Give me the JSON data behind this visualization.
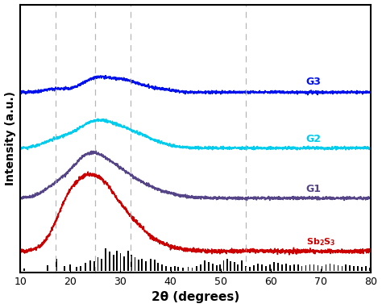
{
  "x_min": 10,
  "x_max": 80,
  "xlabel": "2θ (degrees)",
  "ylabel": "Intensity (a.u.)",
  "dashed_lines": [
    17,
    25,
    32,
    55
  ],
  "curve_labels": [
    "G3",
    "G2",
    "G1",
    "Sb₂S₃"
  ],
  "curve_colors": [
    "#0011ee",
    "#00ccee",
    "#554488",
    "#cc0000"
  ],
  "curve_offsets": [
    3.0,
    2.05,
    1.2,
    0.3
  ],
  "xticks": [
    10,
    20,
    30,
    40,
    50,
    60,
    70,
    80
  ],
  "background_color": "#ffffff",
  "bar_positions": [
    10.8,
    15.5,
    17.2,
    18.8,
    20.0,
    21.2,
    22.1,
    23.0,
    24.0,
    24.8,
    25.5,
    26.2,
    27.0,
    27.8,
    28.6,
    29.3,
    30.0,
    30.7,
    31.5,
    32.2,
    32.9,
    33.6,
    34.3,
    35.1,
    36.0,
    36.8,
    37.5,
    38.3,
    39.1,
    40.0,
    40.8,
    41.5,
    42.5,
    43.5,
    44.3,
    45.2,
    46.0,
    46.8,
    47.6,
    48.4,
    49.2,
    49.9,
    50.6,
    51.3,
    52.0,
    52.7,
    53.4,
    54.2,
    55.0,
    55.8,
    56.6,
    57.4,
    58.2,
    59.0,
    59.8,
    60.6,
    61.4,
    62.2,
    63.0,
    63.8,
    64.6,
    65.4,
    66.2,
    67.0,
    67.8,
    68.6,
    69.4,
    70.2,
    71.0,
    71.8,
    72.6,
    73.4,
    74.2,
    75.0,
    75.8,
    76.6,
    77.4,
    78.2,
    79.0,
    79.8
  ],
  "bar_heights": [
    0.12,
    0.25,
    0.55,
    0.2,
    0.28,
    0.18,
    0.22,
    0.35,
    0.45,
    0.42,
    0.6,
    0.52,
    1.0,
    0.85,
    0.72,
    0.9,
    0.8,
    0.65,
    0.88,
    0.7,
    0.6,
    0.5,
    0.55,
    0.42,
    0.55,
    0.5,
    0.35,
    0.28,
    0.22,
    0.18,
    0.22,
    0.18,
    0.15,
    0.18,
    0.14,
    0.2,
    0.3,
    0.45,
    0.38,
    0.32,
    0.25,
    0.3,
    0.45,
    0.55,
    0.42,
    0.38,
    0.3,
    0.48,
    0.22,
    0.18,
    0.25,
    0.32,
    0.28,
    0.22,
    0.3,
    0.38,
    0.35,
    0.28,
    0.32,
    0.25,
    0.3,
    0.28,
    0.22,
    0.26,
    0.3,
    0.28,
    0.25,
    0.22,
    0.28,
    0.32,
    0.28,
    0.25,
    0.22,
    0.28,
    0.25,
    0.2,
    0.22,
    0.18,
    0.2,
    0.15
  ]
}
